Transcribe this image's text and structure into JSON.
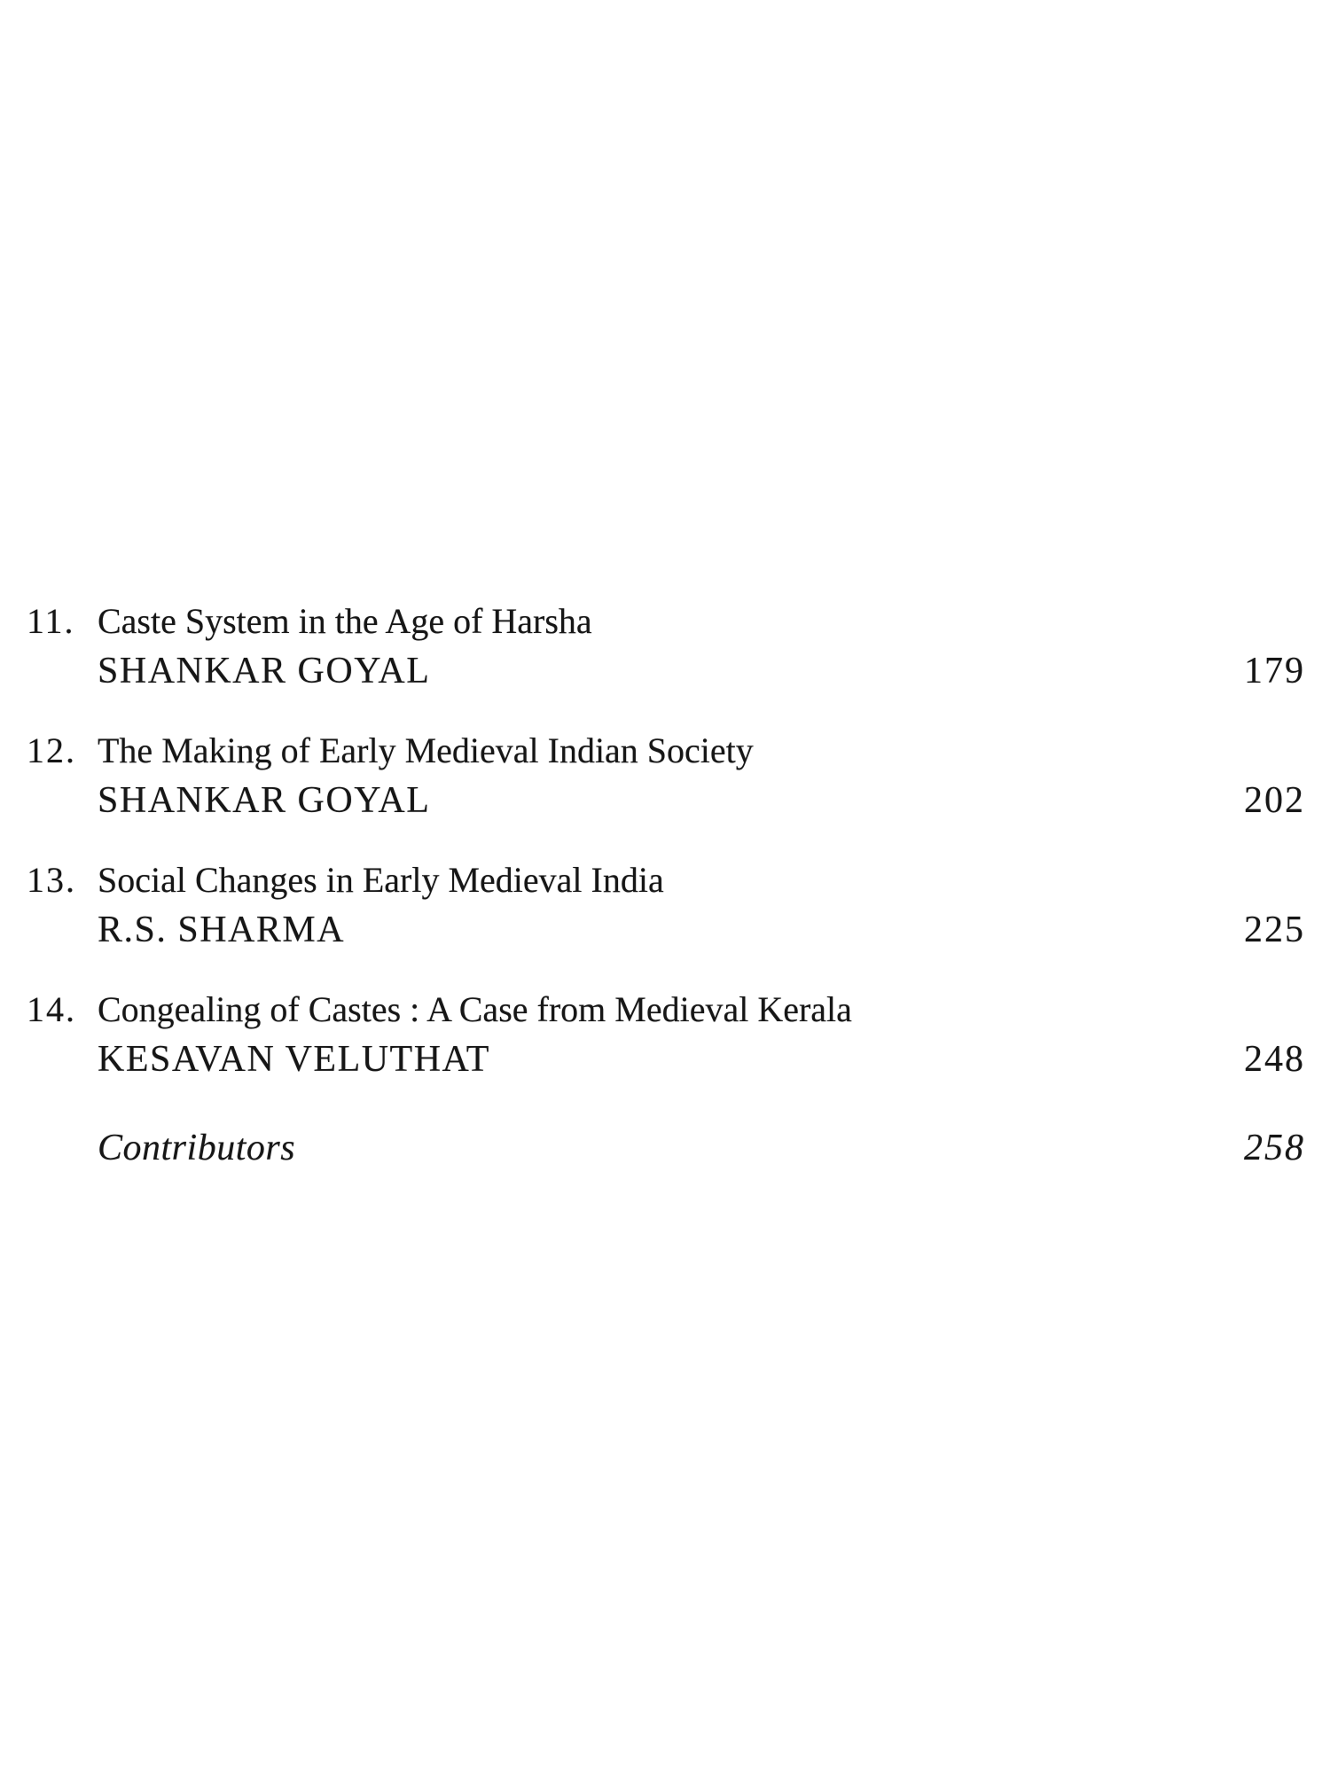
{
  "page": {
    "kind": "book-table-of-contents-scan",
    "colors": {
      "background": "#ffffff",
      "text": "#161616"
    },
    "entries": [
      {
        "number": "11.",
        "title": "Caste System in the Age of Harsha",
        "author": "SHANKAR GOYAL",
        "page_number": "179"
      },
      {
        "number": "12.",
        "title": "The Making of Early Medieval Indian Society",
        "author": "SHANKAR GOYAL",
        "page_number": "202"
      },
      {
        "number": "13.",
        "title": "Social Changes in Early Medieval India",
        "author": "R.S. SHARMA",
        "page_number": "225"
      },
      {
        "number": "14.",
        "title": "Congealing of Castes : A Case from Medieval Kerala",
        "author": "KESAVAN VELUTHAT",
        "page_number": "248"
      }
    ],
    "footer": {
      "label": "Contributors",
      "page_number": "258"
    }
  }
}
